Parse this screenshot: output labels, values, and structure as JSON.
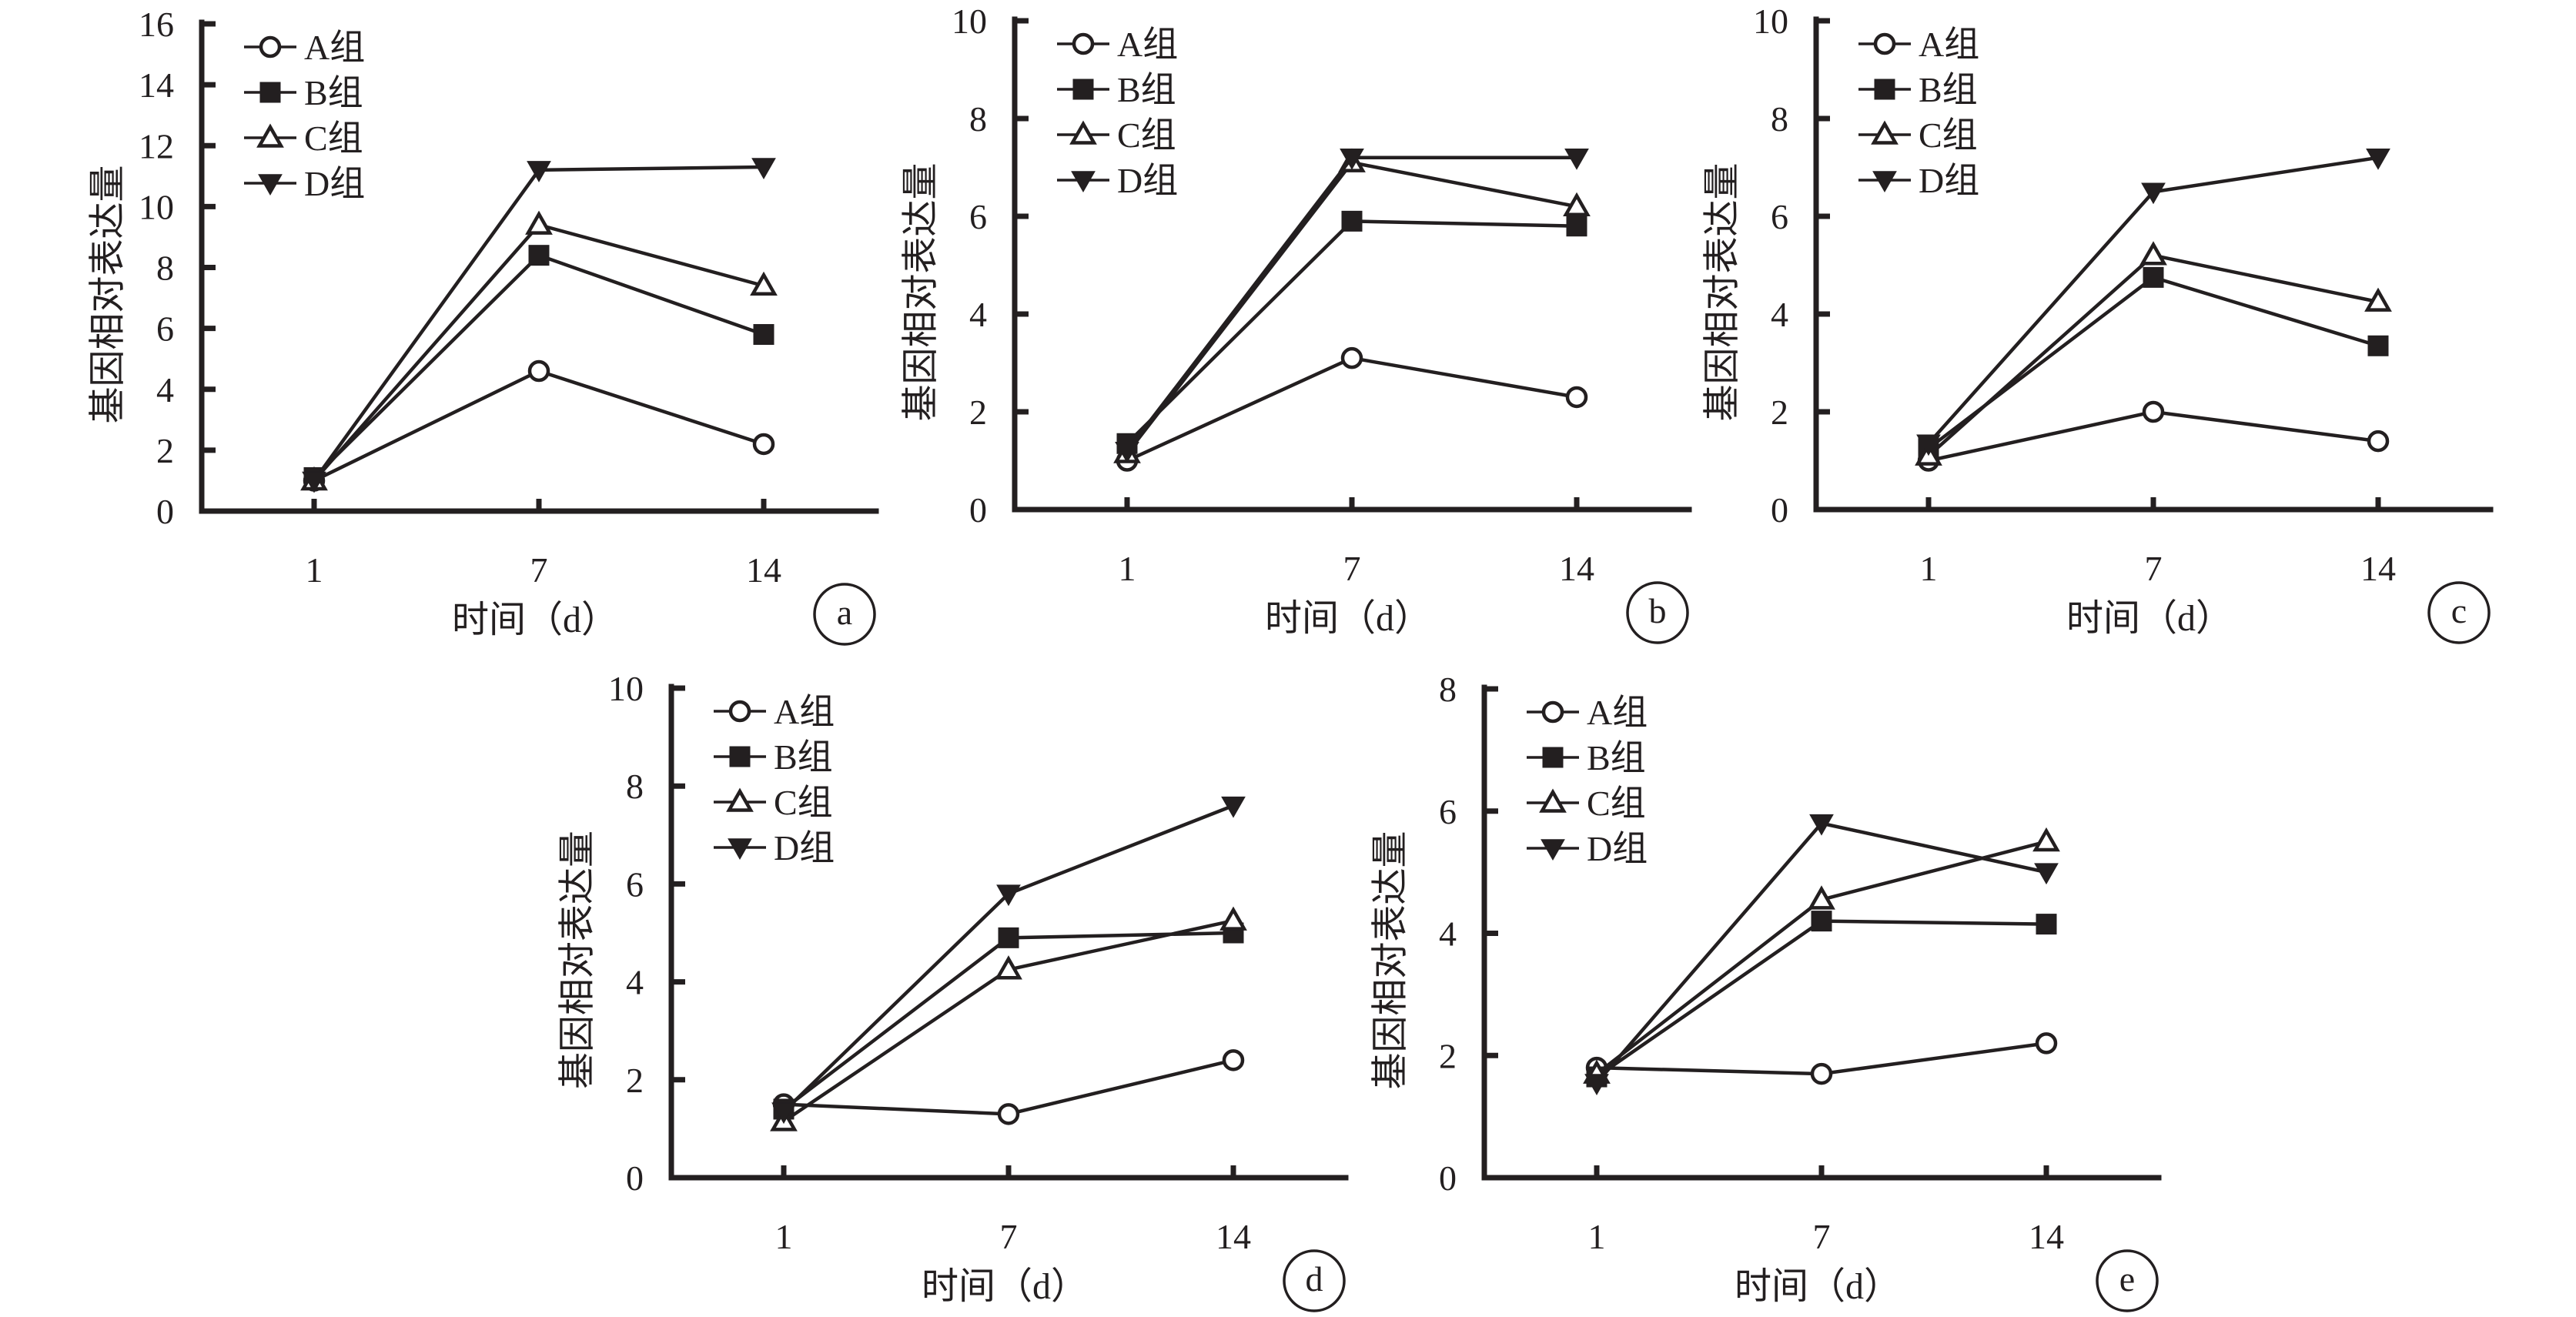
{
  "chart_data": [
    {
      "type": "line",
      "panel": "a",
      "xlabel": "时间（d）",
      "ylabel": "基因相对表达量",
      "categories": [
        "1",
        "7",
        "14"
      ],
      "ylim": [
        0,
        16
      ],
      "yticks": [
        0,
        2,
        4,
        6,
        8,
        10,
        12,
        14,
        16
      ],
      "legend_position": "top-left",
      "grid": false,
      "series": [
        {
          "name": "A组",
          "marker": "circle-open",
          "values": [
            1.0,
            4.6,
            2.2
          ]
        },
        {
          "name": "B组",
          "marker": "square-filled",
          "values": [
            1.1,
            8.4,
            5.8
          ]
        },
        {
          "name": "C组",
          "marker": "triangle-up-open",
          "values": [
            1.0,
            9.4,
            7.4
          ]
        },
        {
          "name": "D组",
          "marker": "triangle-down-filled",
          "values": [
            1.0,
            11.2,
            11.3
          ]
        }
      ]
    },
    {
      "type": "line",
      "panel": "b",
      "xlabel": "时间（d）",
      "ylabel": "基因相对表达量",
      "categories": [
        "1",
        "7",
        "14"
      ],
      "ylim": [
        0,
        10
      ],
      "yticks": [
        0,
        2,
        4,
        6,
        8,
        10
      ],
      "legend_position": "top-left",
      "grid": false,
      "series": [
        {
          "name": "A组",
          "marker": "circle-open",
          "values": [
            1.0,
            3.1,
            2.3
          ]
        },
        {
          "name": "B组",
          "marker": "square-filled",
          "values": [
            1.35,
            5.9,
            5.8
          ]
        },
        {
          "name": "C组",
          "marker": "triangle-up-open",
          "values": [
            1.15,
            7.1,
            6.2
          ]
        },
        {
          "name": "D组",
          "marker": "triangle-down-filled",
          "values": [
            1.2,
            7.2,
            7.2
          ]
        }
      ]
    },
    {
      "type": "line",
      "panel": "c",
      "xlabel": "时间（d）",
      "ylabel": "基因相对表达量",
      "categories": [
        "1",
        "7",
        "14"
      ],
      "ylim": [
        0,
        10
      ],
      "yticks": [
        0,
        2,
        4,
        6,
        8,
        10
      ],
      "legend_position": "top-left",
      "grid": false,
      "series": [
        {
          "name": "A组",
          "marker": "circle-open",
          "values": [
            1.0,
            2.0,
            1.4
          ]
        },
        {
          "name": "B组",
          "marker": "square-filled",
          "values": [
            1.25,
            4.75,
            3.35
          ]
        },
        {
          "name": "C组",
          "marker": "triangle-up-open",
          "values": [
            1.1,
            5.2,
            4.25
          ]
        },
        {
          "name": "D组",
          "marker": "triangle-down-filled",
          "values": [
            1.35,
            6.5,
            7.2
          ]
        }
      ]
    },
    {
      "type": "line",
      "panel": "d",
      "xlabel": "时间（d）",
      "ylabel": "基因相对表达量",
      "categories": [
        "1",
        "7",
        "14"
      ],
      "ylim": [
        0,
        10
      ],
      "yticks": [
        0,
        2,
        4,
        6,
        8,
        10
      ],
      "legend_position": "top-left",
      "grid": false,
      "series": [
        {
          "name": "A组",
          "marker": "circle-open",
          "values": [
            1.5,
            1.3,
            2.4
          ]
        },
        {
          "name": "B组",
          "marker": "square-filled",
          "values": [
            1.4,
            4.9,
            5.0
          ]
        },
        {
          "name": "C组",
          "marker": "triangle-up-open",
          "values": [
            1.15,
            4.25,
            5.25
          ]
        },
        {
          "name": "D组",
          "marker": "triangle-down-filled",
          "values": [
            1.35,
            5.8,
            7.6
          ]
        }
      ]
    },
    {
      "type": "line",
      "panel": "e",
      "xlabel": "时间（d）",
      "ylabel": "基因相对表达量",
      "categories": [
        "1",
        "7",
        "14"
      ],
      "ylim": [
        0,
        8
      ],
      "yticks": [
        0,
        2,
        4,
        6,
        8
      ],
      "legend_position": "top-left",
      "grid": false,
      "series": [
        {
          "name": "A组",
          "marker": "circle-open",
          "values": [
            1.8,
            1.7,
            2.2
          ]
        },
        {
          "name": "B组",
          "marker": "square-filled",
          "values": [
            1.65,
            4.2,
            4.15
          ]
        },
        {
          "name": "C组",
          "marker": "triangle-up-open",
          "values": [
            1.7,
            4.55,
            5.5
          ]
        },
        {
          "name": "D组",
          "marker": "triangle-down-filled",
          "values": [
            1.55,
            5.8,
            5.0
          ]
        }
      ]
    }
  ]
}
